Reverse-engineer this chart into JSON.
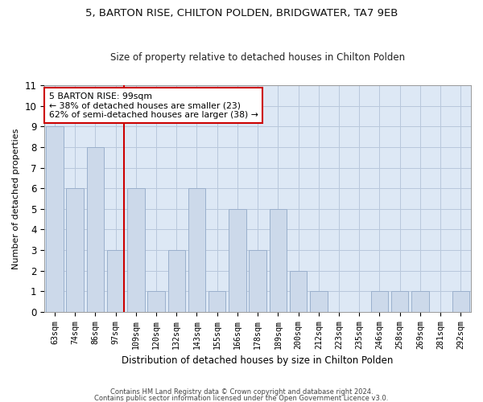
{
  "title1": "5, BARTON RISE, CHILTON POLDEN, BRIDGWATER, TA7 9EB",
  "title2": "Size of property relative to detached houses in Chilton Polden",
  "xlabel": "Distribution of detached houses by size in Chilton Polden",
  "ylabel": "Number of detached properties",
  "categories": [
    "63sqm",
    "74sqm",
    "86sqm",
    "97sqm",
    "109sqm",
    "120sqm",
    "132sqm",
    "143sqm",
    "155sqm",
    "166sqm",
    "178sqm",
    "189sqm",
    "200sqm",
    "212sqm",
    "223sqm",
    "235sqm",
    "246sqm",
    "258sqm",
    "269sqm",
    "281sqm",
    "292sqm"
  ],
  "values": [
    9,
    6,
    8,
    3,
    6,
    1,
    3,
    6,
    1,
    5,
    3,
    5,
    2,
    1,
    0,
    0,
    1,
    1,
    1,
    0,
    1
  ],
  "bar_color": "#ccd9ea",
  "bar_edge_color": "#9ab0cc",
  "red_line_index": 3,
  "annotation_line1": "5 BARTON RISE: 99sqm",
  "annotation_line2": "← 38% of detached houses are smaller (23)",
  "annotation_line3": "62% of semi-detached houses are larger (38) →",
  "annotation_box_color": "#ffffff",
  "annotation_box_edge": "#cc0000",
  "footer1": "Contains HM Land Registry data © Crown copyright and database right 2024.",
  "footer2": "Contains public sector information licensed under the Open Government Licence v3.0.",
  "ylim": [
    0,
    11
  ],
  "background_color": "#ffffff",
  "plot_bg_color": "#dde8f5",
  "grid_color": "#b8c8dc"
}
